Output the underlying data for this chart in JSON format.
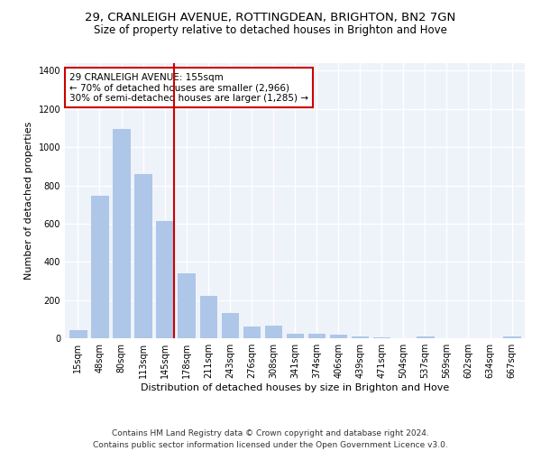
{
  "title1": "29, CRANLEIGH AVENUE, ROTTINGDEAN, BRIGHTON, BN2 7GN",
  "title2": "Size of property relative to detached houses in Brighton and Hove",
  "xlabel": "Distribution of detached houses by size in Brighton and Hove",
  "ylabel": "Number of detached properties",
  "categories": [
    "15sqm",
    "48sqm",
    "80sqm",
    "113sqm",
    "145sqm",
    "178sqm",
    "211sqm",
    "243sqm",
    "276sqm",
    "308sqm",
    "341sqm",
    "374sqm",
    "406sqm",
    "439sqm",
    "471sqm",
    "504sqm",
    "537sqm",
    "569sqm",
    "602sqm",
    "634sqm",
    "667sqm"
  ],
  "values": [
    48,
    750,
    1100,
    865,
    620,
    345,
    225,
    135,
    65,
    70,
    30,
    30,
    22,
    15,
    10,
    0,
    12,
    0,
    0,
    0,
    12
  ],
  "bar_color": "#aec6e8",
  "bar_edge_color": "#ffffff",
  "property_line_color": "#cc0000",
  "annotation_text": "29 CRANLEIGH AVENUE: 155sqm\n← 70% of detached houses are smaller (2,966)\n30% of semi-detached houses are larger (1,285) →",
  "annotation_box_color": "#ffffff",
  "annotation_box_edge": "#cc0000",
  "ylim": [
    0,
    1440
  ],
  "footer": "Contains HM Land Registry data © Crown copyright and database right 2024.\nContains public sector information licensed under the Open Government Licence v3.0.",
  "background_color": "#eef2f9",
  "grid_color": "#ffffff",
  "fig_background": "#ffffff",
  "title1_fontsize": 9.5,
  "title2_fontsize": 8.5,
  "xlabel_fontsize": 8,
  "ylabel_fontsize": 8,
  "tick_fontsize": 7,
  "annotation_fontsize": 7.5,
  "footer_fontsize": 6.5
}
